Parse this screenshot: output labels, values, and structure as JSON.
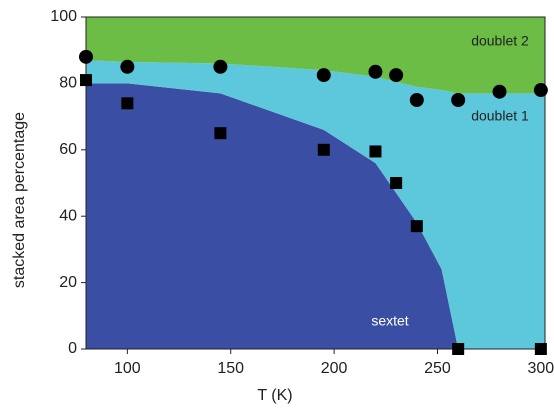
{
  "chart_data": [
    {
      "type": "area",
      "x_label": "T (K)",
      "y_label": "stacked area percentage",
      "x": [
        80,
        100,
        145,
        195,
        220,
        240,
        252,
        260,
        280,
        302
      ],
      "series": [
        {
          "name": "sextet",
          "color": "#3a4fa3",
          "values": [
            80,
            80,
            77,
            66,
            56,
            38,
            24,
            0,
            0,
            0
          ]
        },
        {
          "name": "doublet 1",
          "color": "#5dc8dc",
          "values": [
            7,
            6.5,
            9,
            18,
            26,
            41,
            54,
            77,
            77,
            77
          ]
        },
        {
          "name": "doublet 2",
          "color": "#6cbd45",
          "values": [
            13,
            13.5,
            14,
            16,
            18,
            21,
            22,
            23,
            23,
            23
          ]
        }
      ],
      "xlim": [
        80,
        302
      ],
      "ylim": [
        0,
        100
      ],
      "xticks": [
        100,
        150,
        200,
        250,
        300
      ],
      "yticks": [
        0,
        20,
        40,
        60,
        80,
        100
      ]
    },
    {
      "type": "scatter",
      "xlim": [
        80,
        302
      ],
      "ylim": [
        0,
        100
      ],
      "series": [
        {
          "marker": "circle",
          "color": "#000000",
          "x": [
            80,
            100,
            145,
            195,
            220,
            230,
            240,
            260,
            280,
            300
          ],
          "values": [
            88,
            85,
            85,
            82.5,
            83.5,
            82.5,
            75,
            75,
            77.5,
            78
          ]
        },
        {
          "marker": "square",
          "color": "#000000",
          "x": [
            80,
            100,
            145,
            195,
            220,
            230,
            240,
            260,
            300
          ],
          "values": [
            81,
            74,
            65,
            60,
            59.5,
            50,
            37,
            0,
            0
          ]
        }
      ]
    }
  ]
}
